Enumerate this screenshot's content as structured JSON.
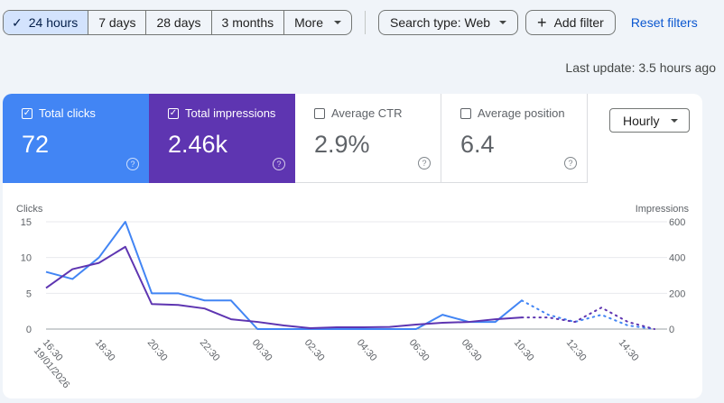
{
  "toolbar": {
    "ranges": [
      {
        "label": "24 hours",
        "active": true
      },
      {
        "label": "7 days"
      },
      {
        "label": "28 days"
      },
      {
        "label": "3 months"
      },
      {
        "label": "More"
      }
    ],
    "search_type": "Search type: Web",
    "add_filter": "Add filter",
    "reset": "Reset filters"
  },
  "last_update": "Last update: 3.5 hours ago",
  "metrics": [
    {
      "label": "Total clicks",
      "value": "72",
      "checked": true,
      "color": "#4285f4"
    },
    {
      "label": "Total impressions",
      "value": "2.46k",
      "checked": true,
      "color": "#5e35b1"
    },
    {
      "label": "Average CTR",
      "value": "2.9%",
      "checked": false
    },
    {
      "label": "Average position",
      "value": "6.4",
      "checked": false
    }
  ],
  "granularity": "Hourly",
  "chart_data": {
    "type": "line",
    "ylabel_left": "Clicks",
    "ylabel_right": "Impressions",
    "y_left_ticks": [
      "0",
      "5",
      "10",
      "15"
    ],
    "y_right_ticks": [
      "0",
      "200",
      "400",
      "600"
    ],
    "ylim_left": [
      0,
      15
    ],
    "ylim_right": [
      0,
      600
    ],
    "x_ticks": [
      "16:30",
      "18:30",
      "20:30",
      "22:30",
      "00:30",
      "02:30",
      "04:30",
      "06:30",
      "08:30",
      "10:30",
      "12:30",
      "14:30"
    ],
    "x_sub_label": "19/01/2026",
    "grid": true,
    "series": [
      {
        "name": "Total clicks",
        "axis": "left",
        "color": "#4285f4",
        "values": [
          8,
          7,
          10,
          15,
          5,
          5,
          4,
          4,
          0,
          0,
          0,
          0,
          0,
          0,
          0,
          2,
          1,
          1,
          4
        ],
        "projected": [
          4,
          2,
          1,
          2,
          0.5,
          0
        ]
      },
      {
        "name": "Total impressions",
        "axis": "right",
        "color": "#5e35b1",
        "values": [
          230,
          335,
          370,
          460,
          140,
          135,
          115,
          55,
          40,
          20,
          5,
          10,
          10,
          12,
          25,
          35,
          40,
          55,
          65
        ],
        "projected": [
          65,
          65,
          40,
          120,
          40,
          0
        ]
      }
    ]
  }
}
